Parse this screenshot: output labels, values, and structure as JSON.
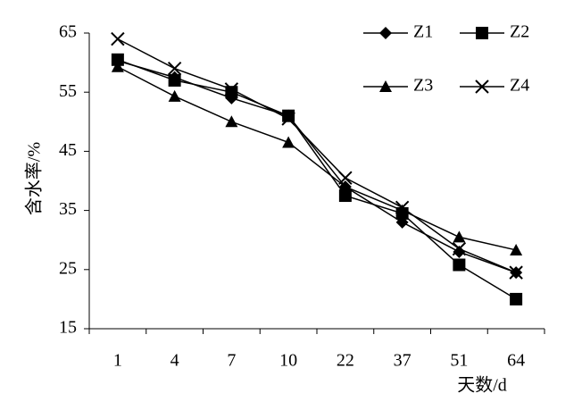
{
  "chart_data": {
    "type": "line",
    "x_label": "天数/d",
    "y_label": "含水率/%",
    "categories": [
      "1",
      "4",
      "7",
      "10",
      "22",
      "37",
      "51",
      "64"
    ],
    "ylim": [
      15,
      65
    ],
    "yticks": [
      15,
      25,
      35,
      45,
      55,
      65
    ],
    "legend": "top-right",
    "series": [
      {
        "name": "Z1",
        "color": "#000000",
        "marker": "diamond",
        "values": [
          60.3,
          57.5,
          54,
          51,
          39,
          33,
          28,
          24.5
        ]
      },
      {
        "name": "Z2",
        "color": "#000000",
        "marker": "square",
        "values": [
          60.5,
          57,
          55,
          51,
          37.5,
          34.5,
          25.8,
          20
        ]
      },
      {
        "name": "Z3",
        "color": "#000000",
        "marker": "triangle",
        "values": [
          59.3,
          54.3,
          50,
          46.5,
          39,
          35,
          30.5,
          28.3
        ]
      },
      {
        "name": "Z4",
        "color": "#000000",
        "marker": "x",
        "values": [
          64,
          59,
          55.5,
          50.5,
          40.5,
          35.5,
          28.5,
          24.5
        ]
      }
    ]
  }
}
